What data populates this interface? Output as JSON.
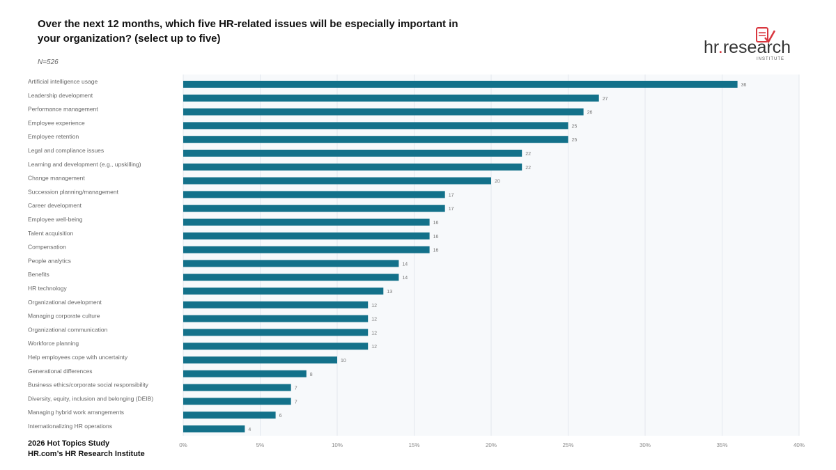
{
  "title": "Over the next 12 months, which five HR-related issues will be especially important in your organization? (select up to five)",
  "sample": "N=526",
  "footer": {
    "line1": "2026 Hot Topics Study",
    "line2": "HR.com’s HR Research Institute"
  },
  "logo": {
    "text": "hr.research",
    "sub": "INSTITUTE"
  },
  "colors": {
    "bar": "#13718a",
    "logo_accent": "#d9363e",
    "logo_text": "#333333"
  },
  "chart_data": {
    "type": "bar",
    "orientation": "horizontal",
    "categories": [
      "Artificial intelligence usage",
      "Leadership development",
      "Performance management",
      "Employee experience",
      "Employee retention",
      "Legal and compliance issues",
      "Learning and development (e.g., upskilling)",
      "Change management",
      "Succession planning/management",
      "Career development",
      "Employee well-being",
      "Talent acquisition",
      "Compensation",
      "People analytics",
      "Benefits",
      "HR technology",
      "Organizational development",
      "Managing corporate culture",
      "Organizational communication",
      "Workforce planning",
      "Help employees cope with uncertainty",
      "Generational differences",
      "Business ethics/corporate social responsibility",
      "Diversity, equity, inclusion and belonging (DEIB)",
      "Managing hybrid work arrangements",
      "Internationalizing HR operations"
    ],
    "values": [
      36,
      27,
      26,
      25,
      25,
      22,
      22,
      20,
      17,
      17,
      16,
      16,
      16,
      14,
      14,
      13,
      12,
      12,
      12,
      12,
      10,
      8,
      7,
      7,
      6,
      4
    ],
    "xlim": [
      0,
      40
    ],
    "xticks": [
      "0%",
      "5%",
      "10%",
      "15%",
      "20%",
      "25%",
      "30%",
      "35%",
      "40%"
    ],
    "grid": true
  }
}
